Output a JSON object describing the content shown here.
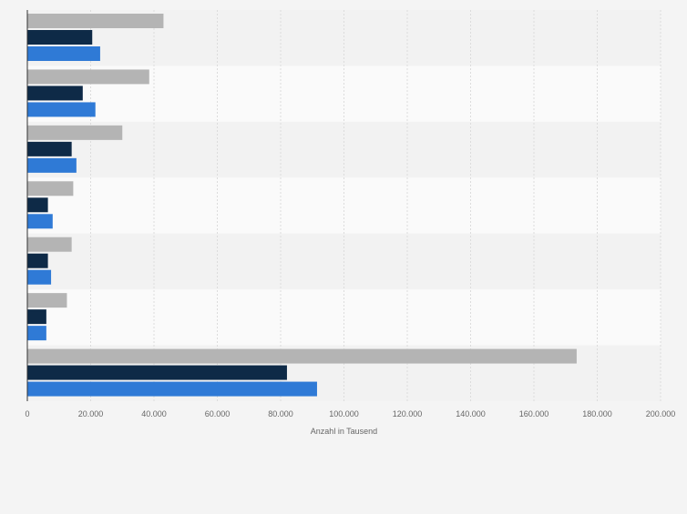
{
  "chart_data": {
    "type": "bar",
    "orientation": "horizontal",
    "categories": [
      "",
      "",
      "",
      "",
      "",
      "",
      ""
    ],
    "series": [
      {
        "values": [
          43000,
          38500,
          30000,
          14500,
          14000,
          12500,
          173500
        ]
      },
      {
        "values": [
          20500,
          17500,
          14000,
          6500,
          6500,
          6000,
          82000
        ]
      },
      {
        "values": [
          23000,
          21500,
          15500,
          8000,
          7500,
          6000,
          91500
        ]
      }
    ],
    "colors": [
      "#b4b4b4",
      "#0e2a47",
      "#2f7ad6"
    ],
    "title": "",
    "xlabel": "Anzahl in Tausend",
    "ylabel": "",
    "xlim": [
      0,
      200000
    ],
    "xticks": [
      0,
      20000,
      40000,
      60000,
      80000,
      100000,
      120000,
      140000,
      160000,
      180000,
      200000
    ],
    "xtick_labels": [
      "0",
      "20.000",
      "40.000",
      "60.000",
      "80.000",
      "100.000",
      "120.000",
      "140.000",
      "160.000",
      "180.000",
      "200.000"
    ],
    "grid": "vertical",
    "legend": "none"
  }
}
